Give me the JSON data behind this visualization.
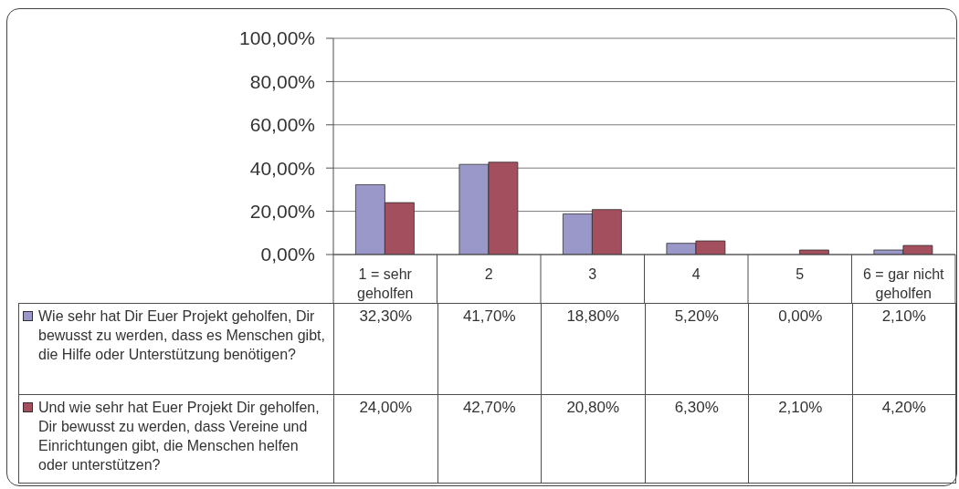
{
  "chart_data": {
    "type": "bar",
    "categories": [
      "1 = sehr geholfen",
      "2",
      "3",
      "4",
      "5",
      "6 = gar nicht geholfen"
    ],
    "series": [
      {
        "name": "Wie sehr hat Dir Euer Projekt geholfen, Dir bewusst zu werden, dass es Menschen gibt, die Hilfe oder Unterstützung benötigen?",
        "color": "#9a97c9",
        "values": [
          32.3,
          41.7,
          18.8,
          5.2,
          0.0,
          2.1
        ],
        "value_labels": [
          "32,30%",
          "41,70%",
          "18,80%",
          "5,20%",
          "0,00%",
          "2,10%"
        ]
      },
      {
        "name": "Und wie sehr hat Euer Projekt Dir geholfen, Dir bewusst zu werden, dass Vereine und Einrichtungen gibt, die Menschen helfen oder unterstützen?",
        "color": "#a44f5e",
        "values": [
          24.0,
          42.7,
          20.8,
          6.3,
          2.1,
          4.2
        ],
        "value_labels": [
          "24,00%",
          "42,70%",
          "20,80%",
          "6,30%",
          "2,10%",
          "4,20%"
        ]
      }
    ],
    "ylim": [
      0,
      100
    ],
    "yticks": [
      {
        "value": 0,
        "label": "0,00%"
      },
      {
        "value": 20,
        "label": "20,00%"
      },
      {
        "value": 40,
        "label": "40,00%"
      },
      {
        "value": 60,
        "label": "60,00%"
      },
      {
        "value": 80,
        "label": "80,00%"
      },
      {
        "value": 100,
        "label": "100,00%"
      }
    ],
    "grid": "y",
    "legend": "bottom left"
  }
}
